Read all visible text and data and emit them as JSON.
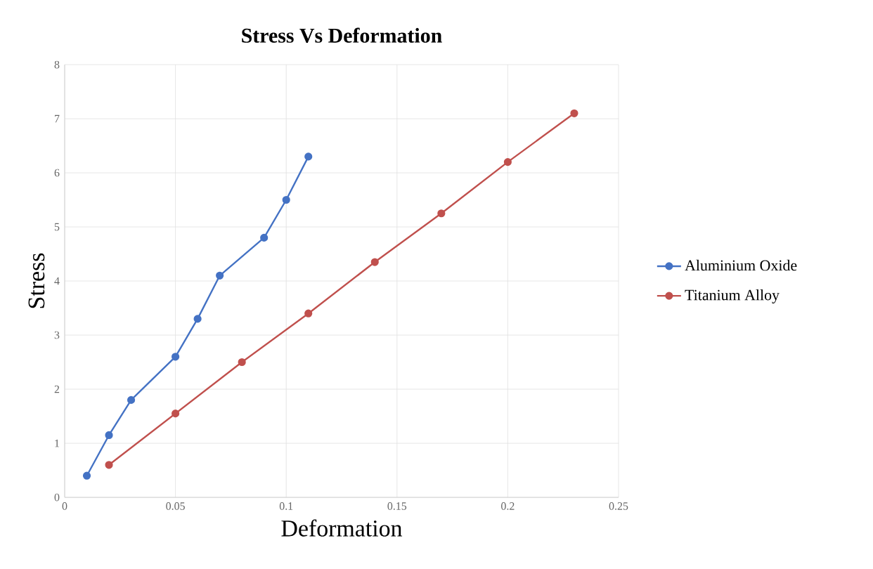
{
  "chart_data": {
    "type": "line",
    "title": "Stress Vs Deformation",
    "xlabel": "Deformation",
    "ylabel": "Stress",
    "xlim": [
      0,
      0.25
    ],
    "ylim": [
      0,
      8
    ],
    "xticks": [
      0,
      0.05,
      0.1,
      0.15,
      0.2,
      0.25
    ],
    "yticks": [
      0,
      1,
      2,
      3,
      4,
      5,
      6,
      7,
      8
    ],
    "grid": true,
    "legend": "right",
    "marker": "circle",
    "line_style": "solid",
    "series": [
      {
        "name": "Aluminium Oxide",
        "color": "#4472c4",
        "x": [
          0.01,
          0.02,
          0.03,
          0.05,
          0.06,
          0.07,
          0.09,
          0.1,
          0.11
        ],
        "values": [
          0.4,
          1.15,
          1.8,
          2.6,
          3.3,
          4.1,
          4.8,
          5.5,
          6.3
        ]
      },
      {
        "name": "Titanium Alloy",
        "color": "#c0504d",
        "x": [
          0.02,
          0.05,
          0.08,
          0.11,
          0.14,
          0.17,
          0.2,
          0.23
        ],
        "values": [
          0.6,
          1.55,
          2.5,
          3.4,
          4.35,
          5.25,
          6.2,
          7.1
        ]
      }
    ]
  }
}
